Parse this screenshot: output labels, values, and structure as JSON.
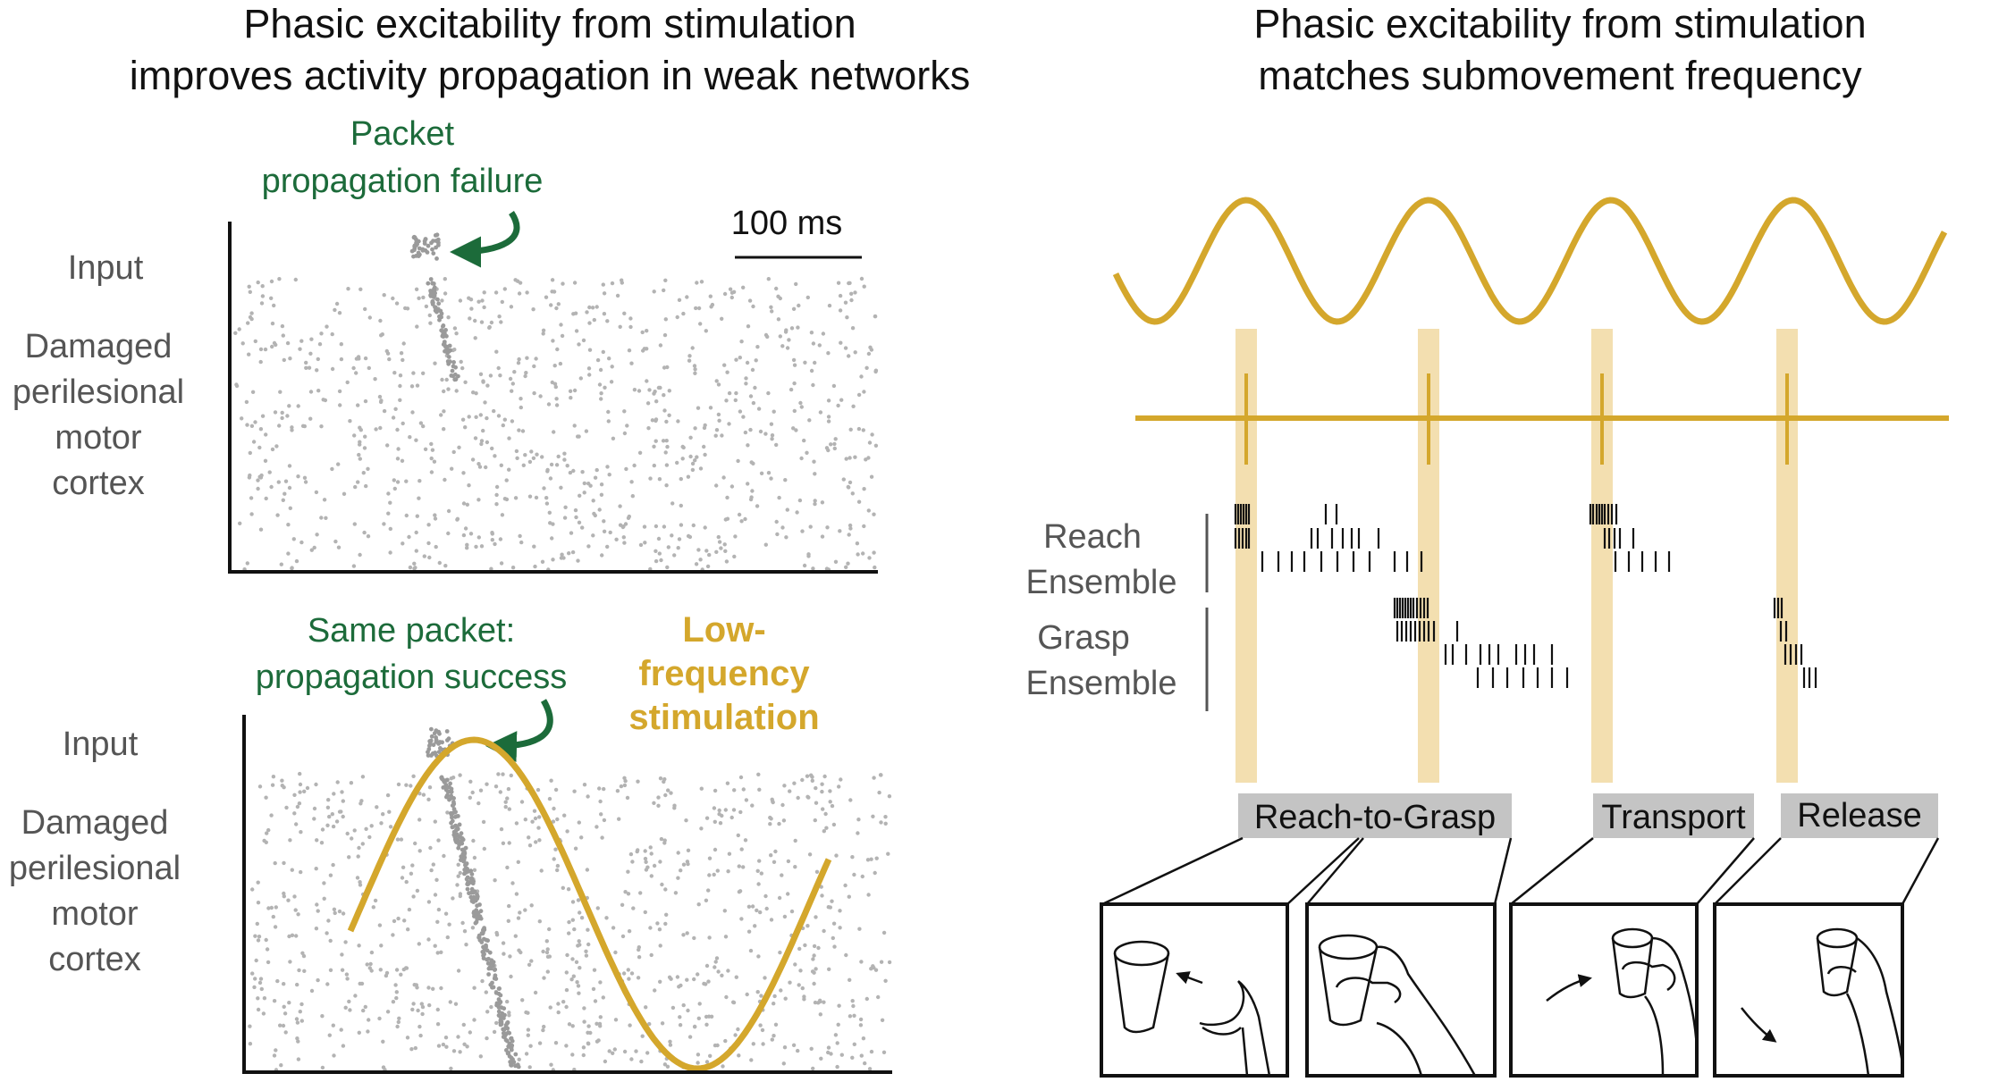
{
  "left_panel": {
    "title_line1": "Phasic excitability from stimulation",
    "title_line2": "improves activity propagation in weak networks",
    "top_raster": {
      "annotation_line1": "Packet",
      "annotation_line2": "propagation failure",
      "input_label": "Input",
      "region_line1": "Damaged",
      "region_line2": "perilesional",
      "region_line3": "motor",
      "region_line4": "cortex",
      "scale_bar_label": "100 ms"
    },
    "bottom_raster": {
      "annotation_line1": "Same packet:",
      "annotation_line2": "propagation success",
      "stim_line1": "Low-",
      "stim_line2": "frequency",
      "stim_line3": "stimulation",
      "input_label": "Input",
      "region_line1": "Damaged",
      "region_line2": "perilesional",
      "region_line3": "motor",
      "region_line4": "cortex"
    }
  },
  "right_panel": {
    "title_line1": "Phasic excitability from stimulation",
    "title_line2": "matches submovement frequency",
    "reach_line1": "Reach",
    "reach_line2": "Ensemble",
    "grasp_line1": "Grasp",
    "grasp_line2": "Ensemble",
    "phases": [
      "Reach-to-Grasp",
      "Transport",
      "Release"
    ]
  },
  "colors": {
    "stimulation": "#d4a72c",
    "phase_band": "#f3dfb0",
    "annotation_green": "#1c6b3a",
    "raster_dot": "#b3b3b3",
    "phase_label_bg": "#c4c4c4"
  },
  "icons": [
    "curved-arrow-icon",
    "cup-hand-reach-icon",
    "cup-hand-grasp-icon",
    "cup-hand-transport-icon",
    "cup-hand-release-icon"
  ]
}
